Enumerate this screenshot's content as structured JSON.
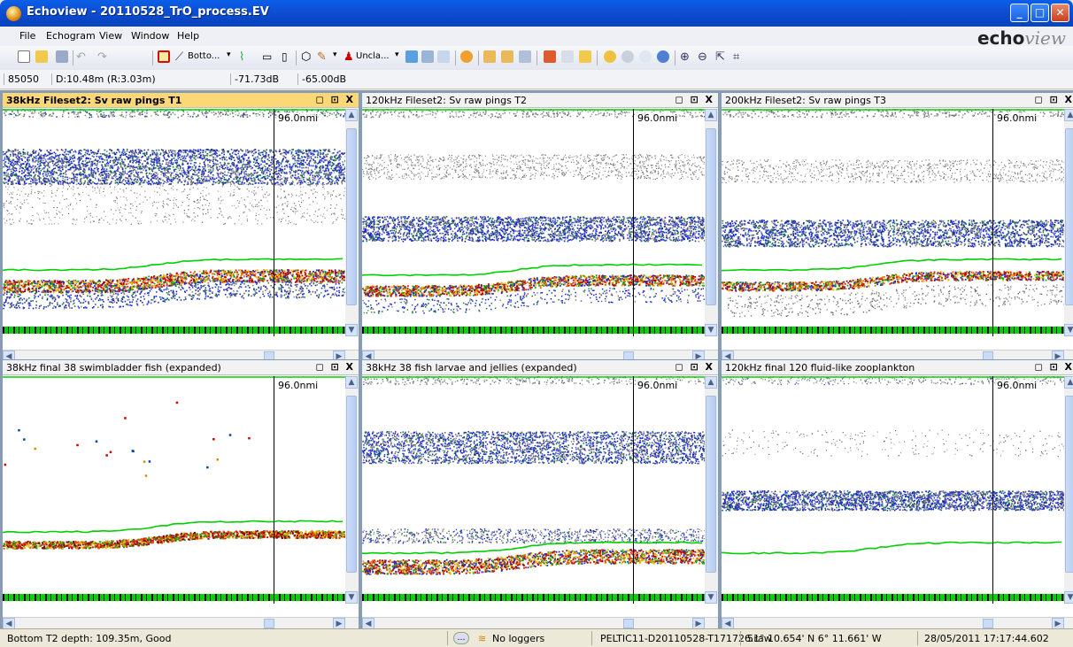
{
  "window": {
    "title": "Echoview - 20110528_TrO_process.EV",
    "brand_main": "echo",
    "brand_tail": "view"
  },
  "menu": [
    "File",
    "Echogram",
    "View",
    "Window",
    "Help"
  ],
  "toolbar": {
    "bottom_label": "Botto...",
    "unclass_label": "Uncla..."
  },
  "status_row": {
    "ping": "85050",
    "depth": "D:10.48m (R:3.03m)",
    "sv_value": "-71.73dB",
    "threshold": "-65.00dB"
  },
  "panes": [
    {
      "title": "38kHz Fileset2: Sv raw pings T1",
      "mileage": "96.0nmi",
      "active": true,
      "profile": "raw38"
    },
    {
      "title": "120kHz Fileset2: Sv raw pings T2",
      "mileage": "96.0nmi",
      "active": false,
      "profile": "raw120"
    },
    {
      "title": "200kHz Fileset2: Sv raw pings T3",
      "mileage": "96.0nmi",
      "active": false,
      "profile": "raw200"
    },
    {
      "title": "38kHz final 38 swimbladder fish (expanded)",
      "mileage": "96.0nmi",
      "active": false,
      "profile": "swim"
    },
    {
      "title": "38kHz 38 fish larvae and jellies (expanded)",
      "mileage": "96.0nmi",
      "active": false,
      "profile": "larvae"
    },
    {
      "title": "120kHz final 120 fluid-like zooplankton",
      "mileage": "96.0nmi",
      "active": false,
      "profile": "zoo"
    }
  ],
  "pane_controls": "◻ ⊡ X",
  "statusbar": {
    "bottom_depth": "Bottom T2 depth: 109.35m, Good",
    "loggers": "No loggers",
    "file": "PELTIC11-D20110528-T171726.raw",
    "position": "51° 10.654' N 6° 11.661' W",
    "datetime": "28/05/2011 17:17:44.602"
  },
  "colors": {
    "title_bar": "#0a4fd6",
    "active_pane_header": "#fbd776",
    "bottom_line": "#00cc00"
  },
  "icons": [
    "new-file-icon",
    "open-file-icon",
    "save-icon",
    "undo-icon",
    "redo-icon",
    "rectangle-select-icon",
    "line-pick-icon",
    "polygon-icon",
    "brush-icon",
    "zoom-in-icon",
    "zoom-out-icon",
    "info-icon"
  ]
}
